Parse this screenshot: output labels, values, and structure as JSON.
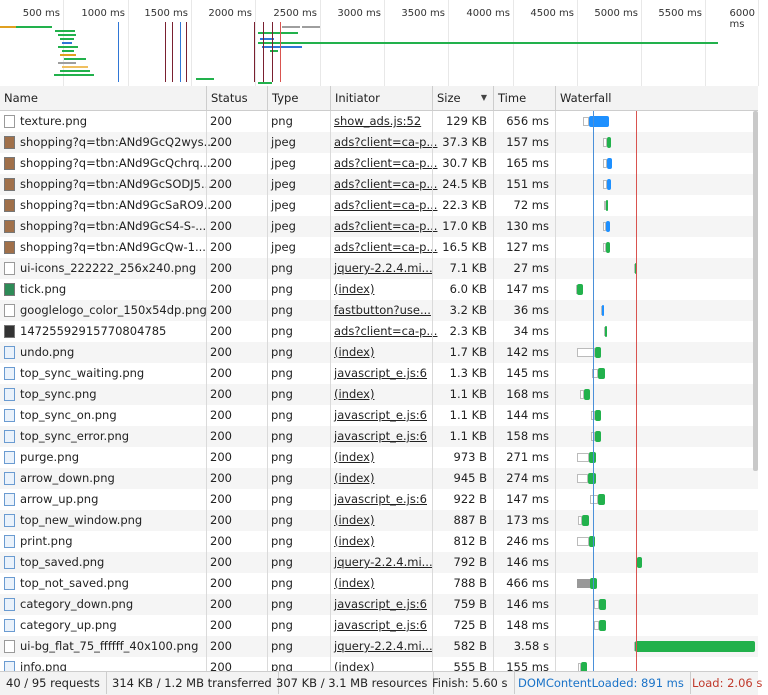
{
  "overview": {
    "ticks": [
      "500 ms",
      "1000 ms",
      "1500 ms",
      "2000 ms",
      "2500 ms",
      "3000 ms",
      "3500 ms",
      "4000 ms",
      "4500 ms",
      "5000 ms",
      "5500 ms",
      "6000 ms"
    ],
    "bar_color": "#22b14c",
    "wait_color": "#9e9e9e",
    "dcl_color": "#2f76d6",
    "load_color": "#d9534f"
  },
  "columns": {
    "name": "Name",
    "status": "Status",
    "type": "Type",
    "initiator": "Initiator",
    "size": "Size",
    "time": "Time",
    "waterfall": "Waterfall"
  },
  "rows": [
    {
      "name": "texture.png",
      "status": "200",
      "type": "png",
      "initiator": "show_ads.js:52",
      "size": "129 KB",
      "time": "656 ms",
      "icon": "file-icon"
    },
    {
      "name": "shopping?q=tbn:ANd9GcQ2wys...",
      "status": "200",
      "type": "jpeg",
      "initiator": "ads?client=ca-p...",
      "size": "37.3 KB",
      "time": "157 ms",
      "icon": "image-icon"
    },
    {
      "name": "shopping?q=tbn:ANd9GcQchrq...",
      "status": "200",
      "type": "jpeg",
      "initiator": "ads?client=ca-p...",
      "size": "30.7 KB",
      "time": "165 ms",
      "icon": "image-icon"
    },
    {
      "name": "shopping?q=tbn:ANd9GcSODJ5...",
      "status": "200",
      "type": "jpeg",
      "initiator": "ads?client=ca-p...",
      "size": "24.5 KB",
      "time": "151 ms",
      "icon": "image-icon"
    },
    {
      "name": "shopping?q=tbn:ANd9GcSaRO9...",
      "status": "200",
      "type": "jpeg",
      "initiator": "ads?client=ca-p...",
      "size": "22.3 KB",
      "time": "72 ms",
      "icon": "image-icon"
    },
    {
      "name": "shopping?q=tbn:ANd9GcS4-S-...",
      "status": "200",
      "type": "jpeg",
      "initiator": "ads?client=ca-p...",
      "size": "17.0 KB",
      "time": "130 ms",
      "icon": "image-icon"
    },
    {
      "name": "shopping?q=tbn:ANd9GcQw-1...",
      "status": "200",
      "type": "jpeg",
      "initiator": "ads?client=ca-p...",
      "size": "16.5 KB",
      "time": "127 ms",
      "icon": "image-icon"
    },
    {
      "name": "ui-icons_222222_256x240.png",
      "status": "200",
      "type": "png",
      "initiator": "jquery-2.2.4.mi...",
      "size": "7.1 KB",
      "time": "27 ms",
      "icon": "file-icon"
    },
    {
      "name": "tick.png",
      "status": "200",
      "type": "png",
      "initiator": "(index)",
      "size": "6.0 KB",
      "time": "147 ms",
      "icon": "check-icon"
    },
    {
      "name": "googlelogo_color_150x54dp.png",
      "status": "200",
      "type": "png",
      "initiator": "fastbutton?use...",
      "size": "3.2 KB",
      "time": "36 ms",
      "icon": "file-icon"
    },
    {
      "name": "14725592915770804785",
      "status": "200",
      "type": "png",
      "initiator": "ads?client=ca-p...",
      "size": "2.3 KB",
      "time": "34 ms",
      "icon": "dark-image-icon"
    },
    {
      "name": "undo.png",
      "status": "200",
      "type": "png",
      "initiator": "(index)",
      "size": "1.7 KB",
      "time": "142 ms",
      "icon": "undo-icon"
    },
    {
      "name": "top_sync_waiting.png",
      "status": "200",
      "type": "png",
      "initiator": "javascript_e.js:6",
      "size": "1.3 KB",
      "time": "145 ms",
      "icon": "sync-icon"
    },
    {
      "name": "top_sync.png",
      "status": "200",
      "type": "png",
      "initiator": "(index)",
      "size": "1.1 KB",
      "time": "168 ms",
      "icon": "sync-icon"
    },
    {
      "name": "top_sync_on.png",
      "status": "200",
      "type": "png",
      "initiator": "javascript_e.js:6",
      "size": "1.1 KB",
      "time": "144 ms",
      "icon": "sync-icon"
    },
    {
      "name": "top_sync_error.png",
      "status": "200",
      "type": "png",
      "initiator": "javascript_e.js:6",
      "size": "1.1 KB",
      "time": "158 ms",
      "icon": "sync-icon"
    },
    {
      "name": "purge.png",
      "status": "200",
      "type": "png",
      "initiator": "(index)",
      "size": "973 B",
      "time": "271 ms",
      "icon": "purge-icon"
    },
    {
      "name": "arrow_down.png",
      "status": "200",
      "type": "png",
      "initiator": "(index)",
      "size": "945 B",
      "time": "274 ms",
      "icon": "arrow-down-icon"
    },
    {
      "name": "arrow_up.png",
      "status": "200",
      "type": "png",
      "initiator": "javascript_e.js:6",
      "size": "922 B",
      "time": "147 ms",
      "icon": "arrow-up-icon"
    },
    {
      "name": "top_new_window.png",
      "status": "200",
      "type": "png",
      "initiator": "(index)",
      "size": "887 B",
      "time": "173 ms",
      "icon": "new-window-icon"
    },
    {
      "name": "print.png",
      "status": "200",
      "type": "png",
      "initiator": "(index)",
      "size": "812 B",
      "time": "246 ms",
      "icon": "print-icon"
    },
    {
      "name": "top_saved.png",
      "status": "200",
      "type": "png",
      "initiator": "jquery-2.2.4.mi...",
      "size": "792 B",
      "time": "146 ms",
      "icon": "saved-icon"
    },
    {
      "name": "top_not_saved.png",
      "status": "200",
      "type": "png",
      "initiator": "(index)",
      "size": "788 B",
      "time": "466 ms",
      "icon": "not-saved-icon"
    },
    {
      "name": "category_down.png",
      "status": "200",
      "type": "png",
      "initiator": "javascript_e.js:6",
      "size": "759 B",
      "time": "146 ms",
      "icon": "category-down-icon"
    },
    {
      "name": "category_up.png",
      "status": "200",
      "type": "png",
      "initiator": "javascript_e.js:6",
      "size": "725 B",
      "time": "148 ms",
      "icon": "category-up-icon"
    },
    {
      "name": "ui-bg_flat_75_ffffff_40x100.png",
      "status": "200",
      "type": "png",
      "initiator": "jquery-2.2.4.mi...",
      "size": "582 B",
      "time": "3.58 s",
      "icon": "file-icon"
    },
    {
      "name": "info.png",
      "status": "200",
      "type": "png",
      "initiator": "(index)",
      "size": "555 B",
      "time": "155 ms",
      "icon": "info-icon"
    }
  ],
  "status_bar": {
    "requests": "40 / 95 requests",
    "transferred": "314 KB / 1.2 MB transferred",
    "resources": "307 KB / 3.1 MB resources",
    "finish": "Finish: 5.60 s",
    "dcl": "DOMContentLoaded: 891 ms",
    "load": "Load: 2.06 s",
    "dcl_color": "#1a73c8",
    "load_color": "#c0392b"
  }
}
